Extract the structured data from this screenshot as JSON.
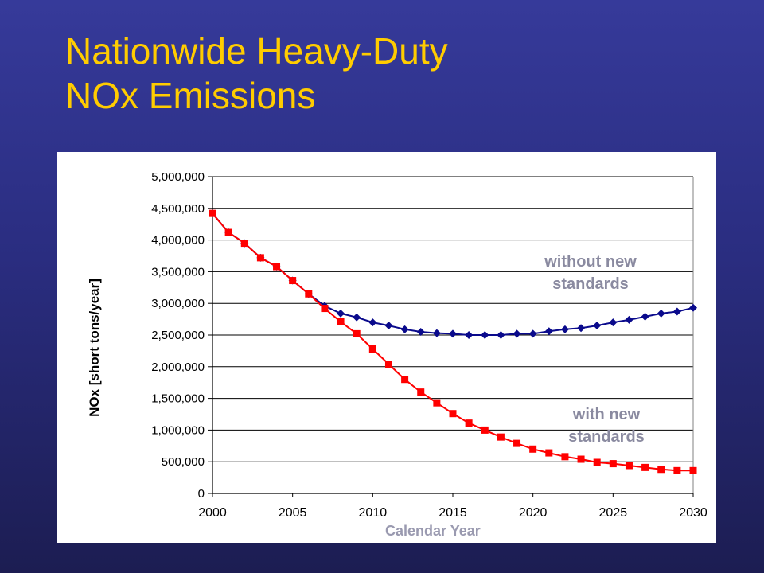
{
  "slide": {
    "title_line1": "Nationwide Heavy-Duty",
    "title_line2": "NOx Emissions"
  },
  "colors": {
    "background": "#2e3189",
    "title": "#ffcc00",
    "without_series": "#0a0a8c",
    "with_series": "#ff0000"
  },
  "chart_data": {
    "type": "line",
    "title": "",
    "xlabel": "Calendar Year",
    "ylabel": "NOx [short tons/year]",
    "xlim": [
      2000,
      2030
    ],
    "ylim": [
      0,
      5000000
    ],
    "xticks": [
      "2000",
      "2005",
      "2010",
      "2015",
      "2020",
      "2025",
      "2030"
    ],
    "yticks": [
      "0",
      "500,000",
      "1,000,000",
      "1,500,000",
      "2,000,000",
      "2,500,000",
      "3,000,000",
      "3,500,000",
      "4,000,000",
      "4,500,000",
      "5,000,000"
    ],
    "grid": "horizontal",
    "x": [
      2000,
      2001,
      2002,
      2003,
      2004,
      2005,
      2006,
      2007,
      2008,
      2009,
      2010,
      2011,
      2012,
      2013,
      2014,
      2015,
      2016,
      2017,
      2018,
      2019,
      2020,
      2021,
      2022,
      2023,
      2024,
      2025,
      2026,
      2027,
      2028,
      2029,
      2030
    ],
    "series": [
      {
        "name": "without new standards",
        "marker": "diamond",
        "values": [
          4420000,
          4120000,
          3950000,
          3720000,
          3580000,
          3360000,
          3150000,
          2960000,
          2840000,
          2780000,
          2700000,
          2650000,
          2590000,
          2550000,
          2530000,
          2520000,
          2500000,
          2500000,
          2500000,
          2520000,
          2520000,
          2560000,
          2590000,
          2610000,
          2650000,
          2700000,
          2740000,
          2790000,
          2840000,
          2870000,
          2930000
        ]
      },
      {
        "name": "with new standards",
        "marker": "square",
        "values": [
          4420000,
          4120000,
          3950000,
          3720000,
          3580000,
          3360000,
          3150000,
          2920000,
          2710000,
          2520000,
          2280000,
          2040000,
          1800000,
          1600000,
          1430000,
          1260000,
          1110000,
          1000000,
          890000,
          790000,
          700000,
          640000,
          580000,
          540000,
          490000,
          470000,
          440000,
          410000,
          380000,
          360000,
          360000
        ]
      }
    ],
    "annotations": [
      {
        "text_line1": "without new",
        "text_line2": "standards",
        "series": "without new standards"
      },
      {
        "text_line1": "with new",
        "text_line2": "standards",
        "series": "with new standards"
      }
    ]
  }
}
